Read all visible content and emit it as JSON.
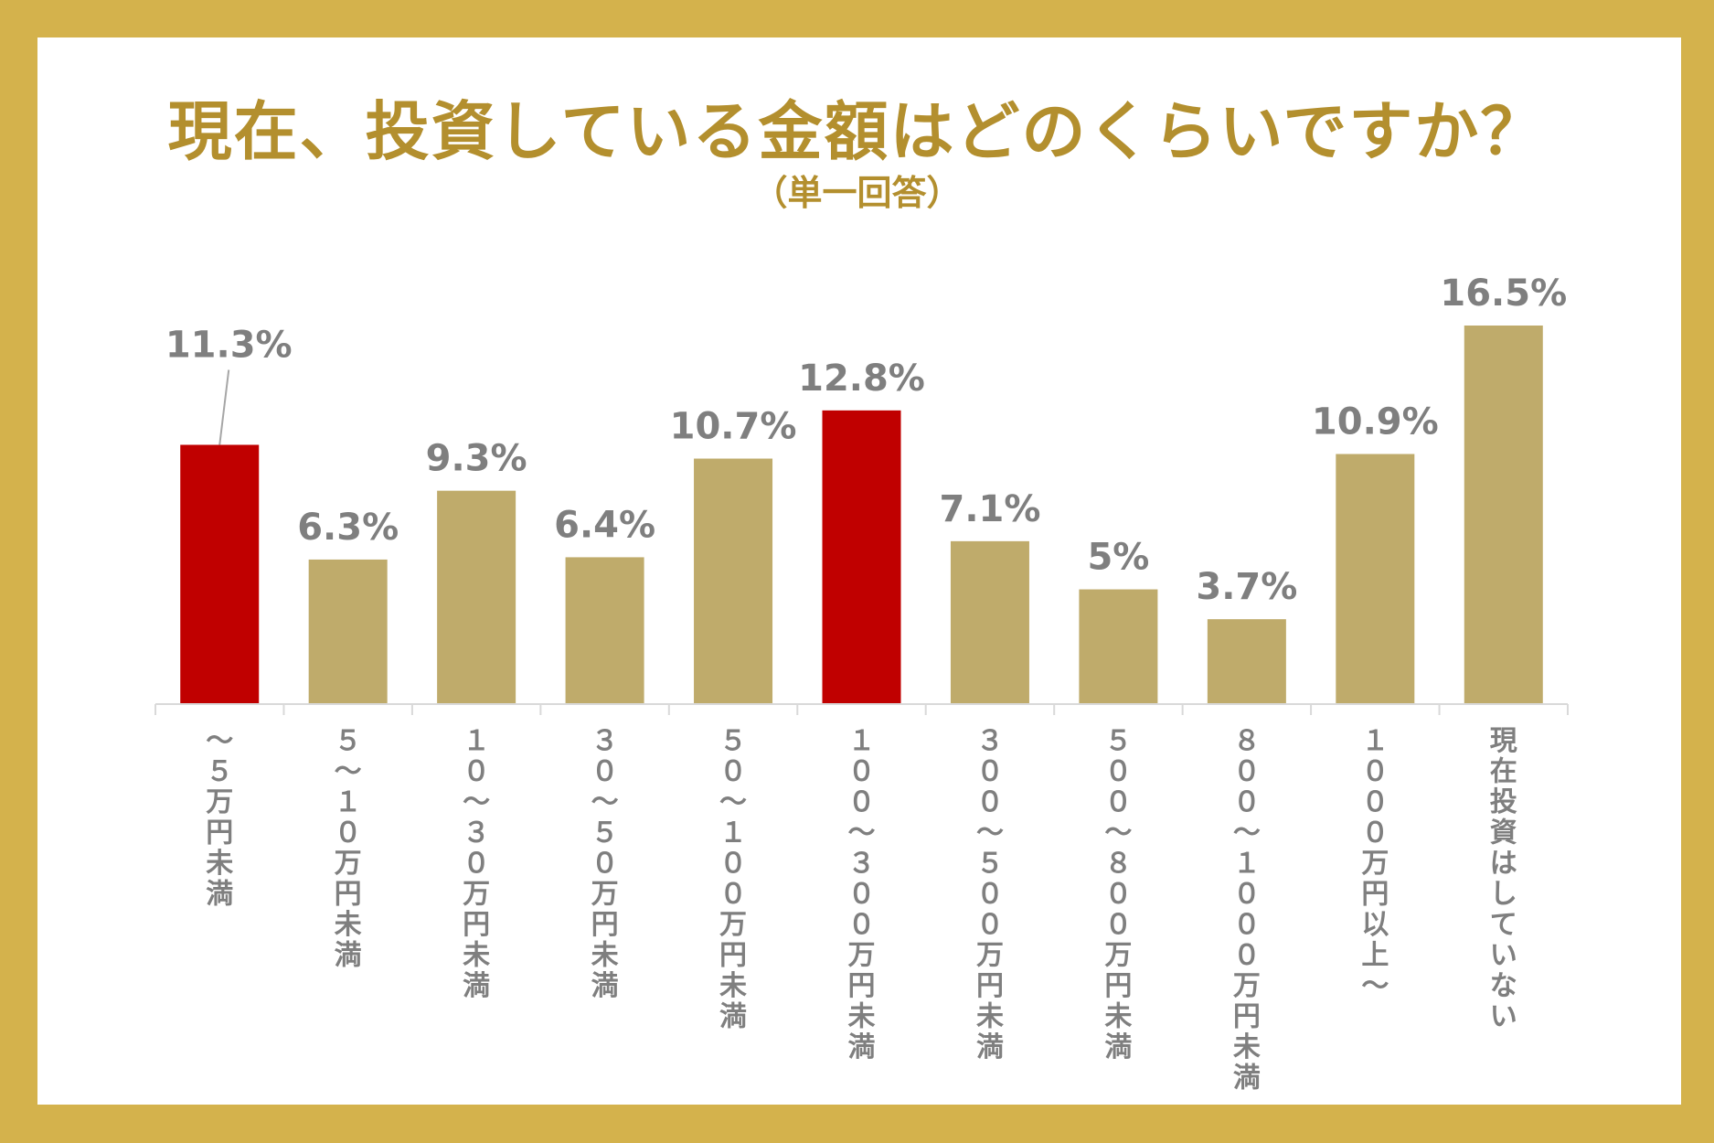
{
  "chart_data": {
    "type": "bar",
    "title": "現在、投資している金額はどのくらいですか？",
    "subtitle": "（単一回答）",
    "categories": [
      "〜5万円未満",
      "5〜10万円未満",
      "10〜30万円未満",
      "30〜50万円未満",
      "50〜100万円未満",
      "100〜300万円未満",
      "300〜500万円未満",
      "500〜800万円未満",
      "800〜1000万円未満",
      "1000万円以上〜",
      "現在投資はしていない"
    ],
    "category_glyphs": [
      [
        "〜",
        "５",
        "万",
        "円",
        "未",
        "満"
      ],
      [
        "５",
        "〜",
        "１",
        "０",
        "万",
        "円",
        "未",
        "満"
      ],
      [
        "１",
        "０",
        "〜",
        "３",
        "０",
        "万",
        "円",
        "未",
        "満"
      ],
      [
        "３",
        "０",
        "〜",
        "５",
        "０",
        "万",
        "円",
        "未",
        "満"
      ],
      [
        "５",
        "０",
        "〜",
        "１",
        "０",
        "０",
        "万",
        "円",
        "未",
        "満"
      ],
      [
        "１",
        "０",
        "０",
        "〜",
        "３",
        "０",
        "０",
        "万",
        "円",
        "未",
        "満"
      ],
      [
        "３",
        "０",
        "０",
        "〜",
        "５",
        "０",
        "０",
        "万",
        "円",
        "未",
        "満"
      ],
      [
        "５",
        "０",
        "０",
        "〜",
        "８",
        "０",
        "０",
        "万",
        "円",
        "未",
        "満"
      ],
      [
        "８",
        "０",
        "０",
        "〜",
        "１",
        "０",
        "０",
        "０",
        "万",
        "円",
        "未",
        "満"
      ],
      [
        "１",
        "０",
        "０",
        "０",
        "万",
        "円",
        "以",
        "上",
        "〜"
      ],
      [
        "現",
        "在",
        "投",
        "資",
        "は",
        "し",
        "て",
        "い",
        "な",
        "い"
      ]
    ],
    "values": [
      11.3,
      6.3,
      9.3,
      6.4,
      10.7,
      12.8,
      7.1,
      5,
      3.7,
      10.9,
      16.5
    ],
    "value_labels": [
      "11.3%",
      "6.3%",
      "9.3%",
      "6.4%",
      "10.7%",
      "12.8%",
      "7.1%",
      "5%",
      "3.7%",
      "10.9%",
      "16.5%"
    ],
    "highlighted": [
      true,
      false,
      false,
      false,
      false,
      true,
      false,
      false,
      false,
      false,
      false
    ],
    "xlabel": "",
    "ylabel": "",
    "ylim": [
      0,
      16.5
    ],
    "grid": false,
    "legend": "none"
  },
  "colors": {
    "frame": "#d4b24c",
    "title": "#b38f2e",
    "bar": "#bfab6b",
    "highlight": "#c00000",
    "label": "#7f7f7f",
    "axis": "#d9d9d9"
  }
}
